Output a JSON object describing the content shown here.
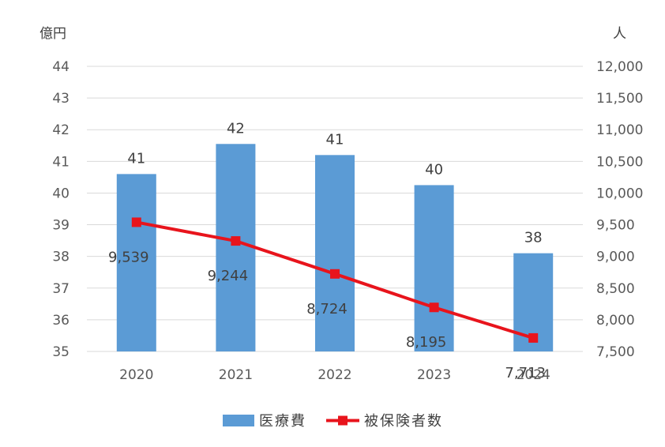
{
  "chart_data": {
    "type": "bar",
    "categories": [
      "2020",
      "2021",
      "2022",
      "2023",
      "2024"
    ],
    "left_unit": "億円",
    "right_unit": "人",
    "left_axis": {
      "min": 35,
      "max": 44,
      "step": 1,
      "ticks": [
        "35",
        "36",
        "37",
        "38",
        "39",
        "40",
        "41",
        "42",
        "43",
        "44"
      ]
    },
    "right_axis": {
      "min": 7500,
      "max": 12000,
      "step": 500,
      "ticks": [
        "7,500",
        "8,000",
        "8,500",
        "9,000",
        "9,500",
        "10,000",
        "10,500",
        "11,000",
        "11,500",
        "12,000"
      ]
    },
    "series": [
      {
        "name": "医療費",
        "type": "bar",
        "axis": "left",
        "color": "#5B9BD5",
        "values": [
          40.6,
          41.55,
          41.2,
          40.25,
          38.1
        ],
        "labels": [
          "41",
          "42",
          "41",
          "40",
          "38"
        ]
      },
      {
        "name": "被保険者数",
        "type": "line",
        "axis": "right",
        "color": "#E8141C",
        "marker": "square",
        "values": [
          9539,
          9244,
          8724,
          8195,
          7713
        ],
        "labels": [
          "9,539",
          "9,244",
          "8,724",
          "8,195",
          "7,713"
        ]
      }
    ],
    "grid": true,
    "legend": "bottom-center"
  }
}
